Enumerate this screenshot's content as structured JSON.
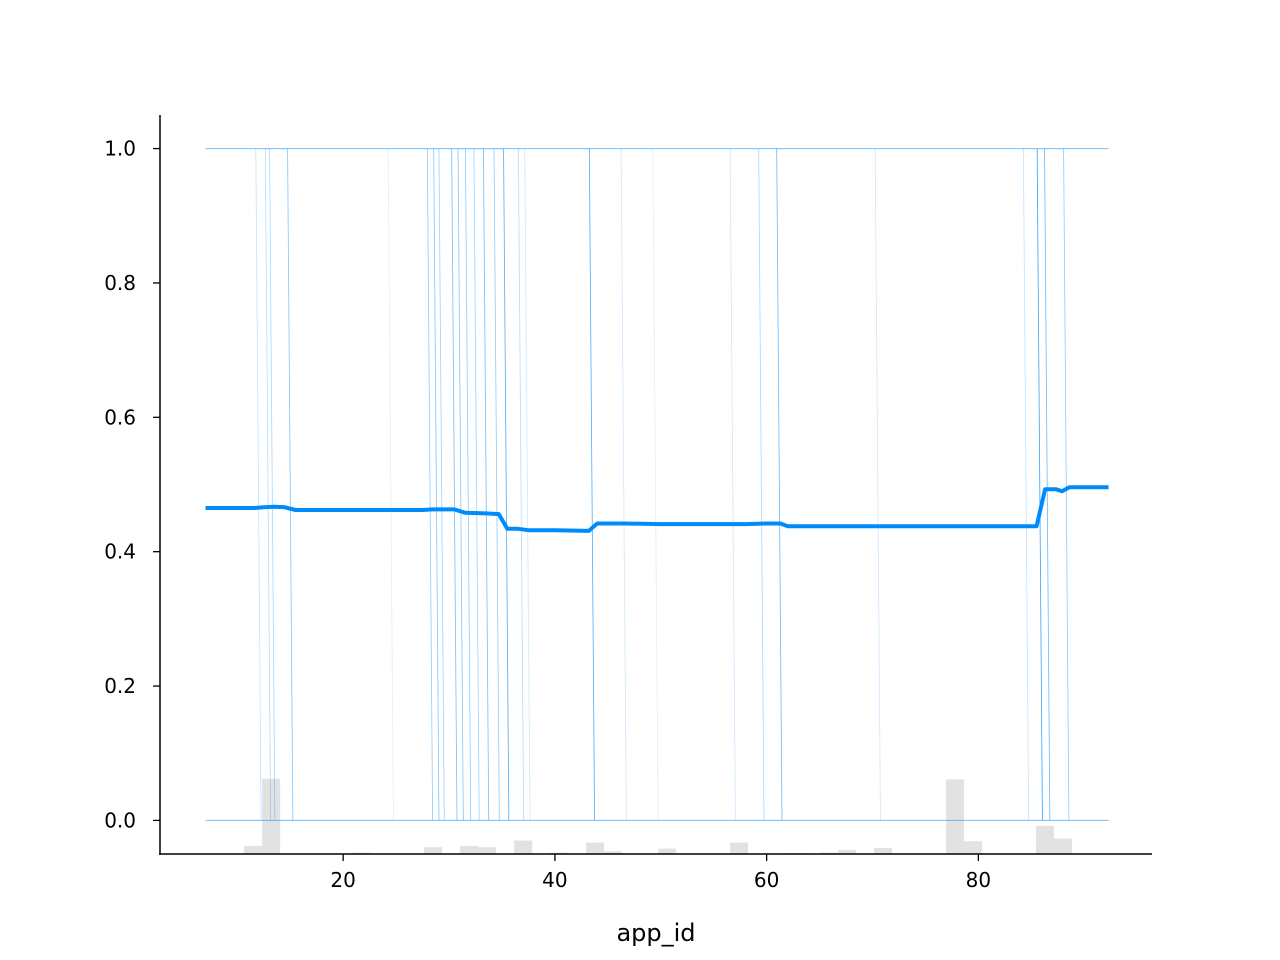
{
  "chart_data": {
    "type": "line",
    "title": "",
    "xlabel": "app_id",
    "ylabel": "",
    "xlim": [
      2.7,
      96.4
    ],
    "ylim": [
      -0.05,
      1.05
    ],
    "xticks": [
      20,
      40,
      60,
      80
    ],
    "xtick_labels": [
      "20",
      "40",
      "60",
      "80"
    ],
    "yticks": [
      0.0,
      0.2,
      0.4,
      0.6,
      0.8,
      1.0
    ],
    "ytick_labels": [
      "0.0",
      "0.2",
      "0.4",
      "0.6",
      "0.8",
      "1.0"
    ],
    "grid": false,
    "colors": {
      "mean_line": "#008bfb",
      "ice_lines": "#008bfb",
      "histogram": "#d3d3d3",
      "axes": "#000000"
    },
    "average_line": {
      "x": [
        7.0,
        11.5,
        12.5,
        13.5,
        14.5,
        15.5,
        20,
        25,
        27.5,
        28.5,
        30.5,
        31.5,
        33.5,
        34.7,
        35.5,
        36.5,
        37.5,
        40,
        43.2,
        44.0,
        46.5,
        50,
        55,
        58,
        60,
        61.3,
        62.0,
        65,
        70,
        75,
        80,
        83,
        85.5,
        86.3,
        87.3,
        87.9,
        88.6,
        92.3
      ],
      "y": [
        0.465,
        0.465,
        0.466,
        0.467,
        0.466,
        0.462,
        0.462,
        0.462,
        0.462,
        0.463,
        0.463,
        0.458,
        0.457,
        0.456,
        0.434,
        0.434,
        0.432,
        0.432,
        0.431,
        0.442,
        0.442,
        0.441,
        0.441,
        0.441,
        0.442,
        0.442,
        0.438,
        0.438,
        0.438,
        0.438,
        0.438,
        0.438,
        0.438,
        0.493,
        0.493,
        0.49,
        0.496,
        0.496
      ]
    },
    "ice_band": {
      "x_range": [
        7.0,
        92.3
      ],
      "y_top": 1.0,
      "y_bottom": 0.0
    },
    "ice_crossings": [
      {
        "x": 12.0,
        "opacity": 0.25
      },
      {
        "x": 12.9,
        "opacity": 0.3
      },
      {
        "x": 13.3,
        "opacity": 0.35
      },
      {
        "x": 15.0,
        "opacity": 0.5
      },
      {
        "x": 24.5,
        "opacity": 0.15
      },
      {
        "x": 28.2,
        "opacity": 0.45
      },
      {
        "x": 28.8,
        "opacity": 0.5
      },
      {
        "x": 29.3,
        "opacity": 0.4
      },
      {
        "x": 30.5,
        "opacity": 0.55
      },
      {
        "x": 31.1,
        "opacity": 0.5
      },
      {
        "x": 31.8,
        "opacity": 0.45
      },
      {
        "x": 32.6,
        "opacity": 0.4
      },
      {
        "x": 33.5,
        "opacity": 0.55
      },
      {
        "x": 34.5,
        "opacity": 0.45
      },
      {
        "x": 35.4,
        "opacity": 0.7
      },
      {
        "x": 36.8,
        "opacity": 0.3
      },
      {
        "x": 37.4,
        "opacity": 0.2
      },
      {
        "x": 43.5,
        "opacity": 0.7
      },
      {
        "x": 46.5,
        "opacity": 0.2
      },
      {
        "x": 49.5,
        "opacity": 0.15
      },
      {
        "x": 56.8,
        "opacity": 0.2
      },
      {
        "x": 59.5,
        "opacity": 0.35
      },
      {
        "x": 61.2,
        "opacity": 0.6
      },
      {
        "x": 70.5,
        "opacity": 0.2
      },
      {
        "x": 84.5,
        "opacity": 0.25
      },
      {
        "x": 85.8,
        "opacity": 0.8
      },
      {
        "x": 86.5,
        "opacity": 0.6
      },
      {
        "x": 88.3,
        "opacity": 0.45
      }
    ],
    "histogram": {
      "bin_width": 1.7,
      "bins": [
        {
          "x": 11.5,
          "height": 0.012
        },
        {
          "x": 13.2,
          "height": 0.112
        },
        {
          "x": 21.7,
          "height": 0.002
        },
        {
          "x": 28.5,
          "height": 0.01
        },
        {
          "x": 31.9,
          "height": 0.012
        },
        {
          "x": 33.6,
          "height": 0.01
        },
        {
          "x": 37.0,
          "height": 0.02
        },
        {
          "x": 40.4,
          "height": 0.002
        },
        {
          "x": 43.8,
          "height": 0.017
        },
        {
          "x": 45.5,
          "height": 0.004
        },
        {
          "x": 50.6,
          "height": 0.008
        },
        {
          "x": 57.4,
          "height": 0.017
        },
        {
          "x": 62.5,
          "height": 0.001
        },
        {
          "x": 65.9,
          "height": 0.002
        },
        {
          "x": 67.6,
          "height": 0.006
        },
        {
          "x": 71.0,
          "height": 0.009
        },
        {
          "x": 77.8,
          "height": 0.111
        },
        {
          "x": 79.5,
          "height": 0.019
        },
        {
          "x": 86.3,
          "height": 0.042
        },
        {
          "x": 88.0,
          "height": 0.023
        }
      ]
    }
  }
}
